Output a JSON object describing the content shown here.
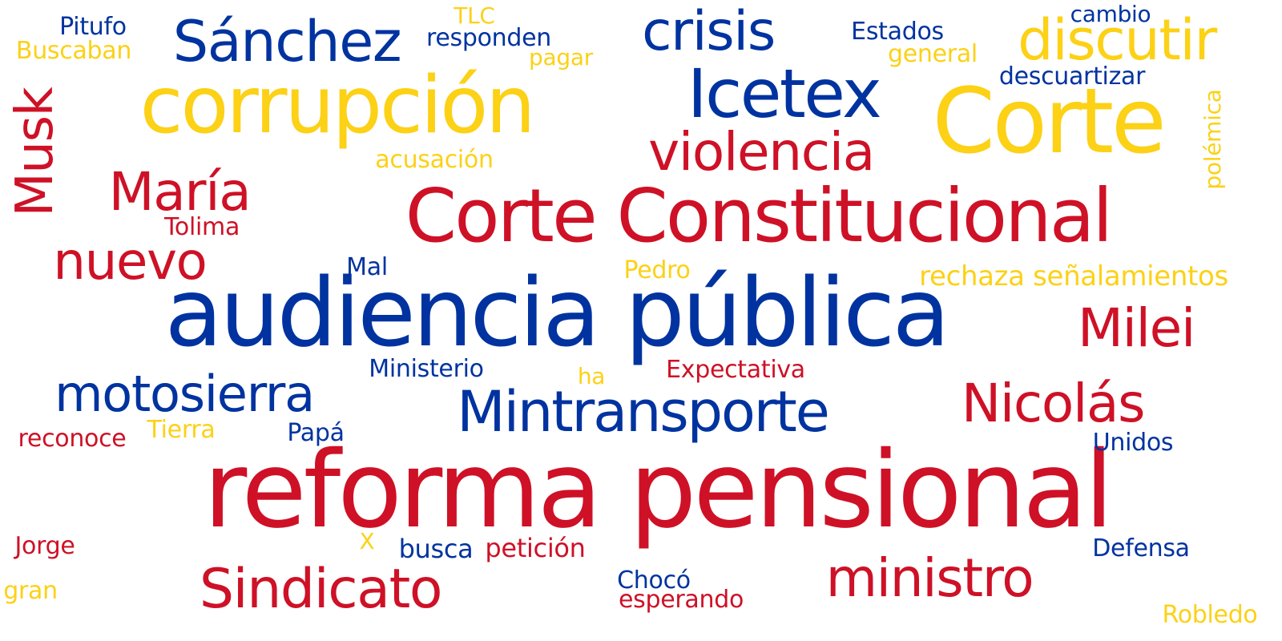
{
  "palette": {
    "red": "#CE1126",
    "yellow": "#FCD116",
    "blue": "#0033A0"
  },
  "words": {
    "reforma_pensional": "reforma pensional",
    "audiencia_publica": "audiencia pública",
    "corte_constitucional": "Corte Constitucional",
    "corte": "Corte",
    "corrupcion": "corrupción",
    "sanchez": "Sánchez",
    "icetex": "Icetex",
    "crisis": "crisis",
    "discutir": "discutir",
    "violencia": "violencia",
    "maria": "María",
    "nuevo": "nuevo",
    "musk": "Musk",
    "milei": "Milei",
    "mintransporte": "Mintransporte",
    "motosierra": "motosierra",
    "nicolas": "Nicolás",
    "sindicato": "Sindicato",
    "ministro": "ministro",
    "pitufo": "Pitufo",
    "buscaban": "Buscaban",
    "tlc": "TLC",
    "responden": "responden",
    "pagar": "pagar",
    "estados": "Estados",
    "cambio": "cambio",
    "general": "general",
    "descuartizar": "descuartizar",
    "polemica": "polémica",
    "acusacion": "acusación",
    "tolima": "Tolima",
    "mal": "Mal",
    "pedro": "Pedro",
    "rechaza_senalamientos": "rechaza señalamientos",
    "ministerio": "Ministerio",
    "ha": "ha",
    "expectativa": "Expectativa",
    "tierra": "Tierra",
    "reconoce": "reconoce",
    "papa": "Papá",
    "unidos": "Unidos",
    "jorge": "Jorge",
    "x": "X",
    "busca": "busca",
    "peticion": "petición",
    "defensa": "Defensa",
    "gran": "gran",
    "choco": "Chocó",
    "esperando": "esperando",
    "robledo": "Robledo"
  }
}
